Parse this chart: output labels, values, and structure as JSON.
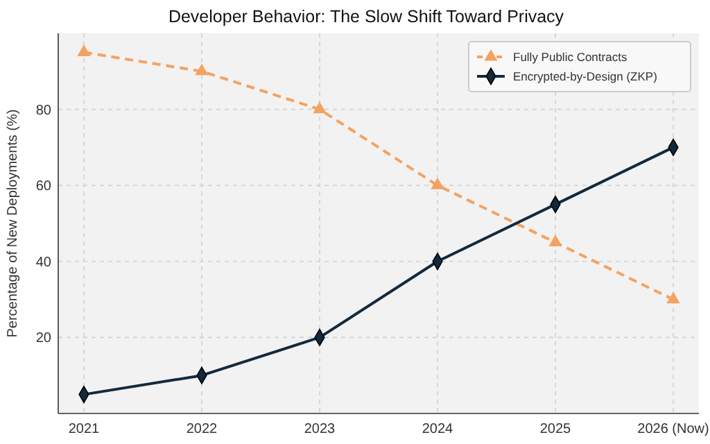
{
  "chart_data": {
    "type": "line",
    "title": "Developer Behavior: The Slow Shift Toward Privacy",
    "ylabel": "Percentage of New Deployments (%)",
    "categories": [
      "2021",
      "2022",
      "2023",
      "2024",
      "2025",
      "2026 (Now)"
    ],
    "series": [
      {
        "name": "Fully Public Contracts",
        "color": "#f4a261",
        "values": [
          95,
          90,
          80,
          60,
          45,
          30
        ],
        "marker": "triangle",
        "line_style": "dashed"
      },
      {
        "name": "Encrypted-by-Design (ZKP)",
        "color": "#13293d",
        "values": [
          5,
          10,
          20,
          40,
          55,
          70
        ],
        "marker": "diamond",
        "line_style": "solid"
      }
    ],
    "ylim": [
      0,
      100
    ],
    "yticks": [
      20,
      40,
      60,
      80
    ],
    "grid": true,
    "legend": "top right"
  }
}
